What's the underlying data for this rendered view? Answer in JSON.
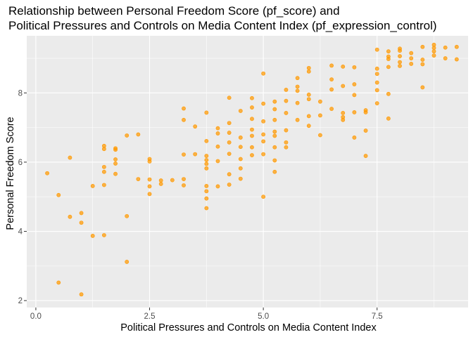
{
  "chart_data": {
    "type": "scatter",
    "title": [
      "Relationship between Personal Freedom Score (pf_score) and",
      "Political Pressures and Controls on Media Content Index (pf_expression_control)"
    ],
    "xlabel": "Political Pressures and Controls on Media Content Index",
    "ylabel": "Personal Freedom Score",
    "xlim": [
      -0.2,
      9.5
    ],
    "ylim": [
      1.8,
      9.65
    ],
    "xticks": [
      0,
      2.5,
      5,
      7.5
    ],
    "xtick_labels": [
      "0.0",
      "2.5",
      "5.0",
      "7.5"
    ],
    "yticks": [
      2,
      4,
      6,
      8
    ],
    "ytick_labels": [
      "2",
      "4",
      "6",
      "8"
    ],
    "point_color": "#FF9900",
    "panel_bg": "#EBEBEB",
    "grid_color": "#FFFFFF",
    "points": [
      [
        0.25,
        5.68
      ],
      [
        0.5,
        5.05
      ],
      [
        0.5,
        2.52
      ],
      [
        0.75,
        6.13
      ],
      [
        0.75,
        4.42
      ],
      [
        1.0,
        4.53
      ],
      [
        1.0,
        4.25
      ],
      [
        1.0,
        2.18
      ],
      [
        1.25,
        5.31
      ],
      [
        1.25,
        3.87
      ],
      [
        1.5,
        6.47
      ],
      [
        1.5,
        6.38
      ],
      [
        1.5,
        5.86
      ],
      [
        1.5,
        5.72
      ],
      [
        1.5,
        5.34
      ],
      [
        1.5,
        3.89
      ],
      [
        1.75,
        6.4
      ],
      [
        1.75,
        6.36
      ],
      [
        1.75,
        6.08
      ],
      [
        1.75,
        5.96
      ],
      [
        1.75,
        5.66
      ],
      [
        2.0,
        6.77
      ],
      [
        2.0,
        4.44
      ],
      [
        2.0,
        3.12
      ],
      [
        2.25,
        6.8
      ],
      [
        2.25,
        5.51
      ],
      [
        2.5,
        6.09
      ],
      [
        2.5,
        6.02
      ],
      [
        2.5,
        5.5
      ],
      [
        2.5,
        5.3
      ],
      [
        2.5,
        5.08
      ],
      [
        2.75,
        5.47
      ],
      [
        2.75,
        5.37
      ],
      [
        3.0,
        5.48
      ],
      [
        3.25,
        7.55
      ],
      [
        3.25,
        7.22
      ],
      [
        3.25,
        6.22
      ],
      [
        3.25,
        5.51
      ],
      [
        3.25,
        5.33
      ],
      [
        3.5,
        7.03
      ],
      [
        3.5,
        6.23
      ],
      [
        3.75,
        7.43
      ],
      [
        3.75,
        6.61
      ],
      [
        3.75,
        6.18
      ],
      [
        3.75,
        6.06
      ],
      [
        3.75,
        5.95
      ],
      [
        3.75,
        5.82
      ],
      [
        3.75,
        5.31
      ],
      [
        3.75,
        5.16
      ],
      [
        3.75,
        4.95
      ],
      [
        3.75,
        4.67
      ],
      [
        4.0,
        6.98
      ],
      [
        4.0,
        6.83
      ],
      [
        4.0,
        6.45
      ],
      [
        4.0,
        6.03
      ],
      [
        4.0,
        5.3
      ],
      [
        4.25,
        7.86
      ],
      [
        4.25,
        7.13
      ],
      [
        4.25,
        6.85
      ],
      [
        4.25,
        6.57
      ],
      [
        4.25,
        6.24
      ],
      [
        4.25,
        5.65
      ],
      [
        4.25,
        5.35
      ],
      [
        4.5,
        7.48
      ],
      [
        4.5,
        6.71
      ],
      [
        4.5,
        6.44
      ],
      [
        4.5,
        6.09
      ],
      [
        4.5,
        5.82
      ],
      [
        4.5,
        5.52
      ],
      [
        4.75,
        7.85
      ],
      [
        4.75,
        7.58
      ],
      [
        4.75,
        7.25
      ],
      [
        4.75,
        6.94
      ],
      [
        4.75,
        6.76
      ],
      [
        4.75,
        6.43
      ],
      [
        4.75,
        6.2
      ],
      [
        5.0,
        8.56
      ],
      [
        5.0,
        7.69
      ],
      [
        5.0,
        7.18
      ],
      [
        5.0,
        6.8
      ],
      [
        5.0,
        6.6
      ],
      [
        5.0,
        6.23
      ],
      [
        5.0,
        5.0
      ],
      [
        5.25,
        7.75
      ],
      [
        5.25,
        7.53
      ],
      [
        5.25,
        7.22
      ],
      [
        5.25,
        6.88
      ],
      [
        5.25,
        6.76
      ],
      [
        5.25,
        6.43
      ],
      [
        5.25,
        6.05
      ],
      [
        5.25,
        5.72
      ],
      [
        5.5,
        8.09
      ],
      [
        5.5,
        7.77
      ],
      [
        5.5,
        7.42
      ],
      [
        5.5,
        6.92
      ],
      [
        5.5,
        6.57
      ],
      [
        5.5,
        6.43
      ],
      [
        5.75,
        8.43
      ],
      [
        5.75,
        8.18
      ],
      [
        5.75,
        8.06
      ],
      [
        5.75,
        7.71
      ],
      [
        5.75,
        7.22
      ],
      [
        6.0,
        8.72
      ],
      [
        6.0,
        8.62
      ],
      [
        6.0,
        7.95
      ],
      [
        6.0,
        7.82
      ],
      [
        6.0,
        7.33
      ],
      [
        6.0,
        7.05
      ],
      [
        6.25,
        7.75
      ],
      [
        6.25,
        7.35
      ],
      [
        6.25,
        6.78
      ],
      [
        6.5,
        8.79
      ],
      [
        6.5,
        8.39
      ],
      [
        6.5,
        8.1
      ],
      [
        6.5,
        7.54
      ],
      [
        6.75,
        8.76
      ],
      [
        6.75,
        8.2
      ],
      [
        6.75,
        7.42
      ],
      [
        6.75,
        7.3
      ],
      [
        6.75,
        7.22
      ],
      [
        7.0,
        8.74
      ],
      [
        7.0,
        8.25
      ],
      [
        7.0,
        7.94
      ],
      [
        7.0,
        7.44
      ],
      [
        7.0,
        6.71
      ],
      [
        7.25,
        7.5
      ],
      [
        7.25,
        7.44
      ],
      [
        7.25,
        6.91
      ],
      [
        7.25,
        6.18
      ],
      [
        7.5,
        9.25
      ],
      [
        7.5,
        8.7
      ],
      [
        7.5,
        8.55
      ],
      [
        7.5,
        8.3
      ],
      [
        7.5,
        8.08
      ],
      [
        7.5,
        7.7
      ],
      [
        7.75,
        9.2
      ],
      [
        7.75,
        9.05
      ],
      [
        7.75,
        8.98
      ],
      [
        7.75,
        8.75
      ],
      [
        7.75,
        7.97
      ],
      [
        7.75,
        7.26
      ],
      [
        8.0,
        9.28
      ],
      [
        8.0,
        9.22
      ],
      [
        8.0,
        9.06
      ],
      [
        8.0,
        8.89
      ],
      [
        8.0,
        8.78
      ],
      [
        8.25,
        9.15
      ],
      [
        8.25,
        9.0
      ],
      [
        8.25,
        8.84
      ],
      [
        8.5,
        9.33
      ],
      [
        8.5,
        8.96
      ],
      [
        8.5,
        8.83
      ],
      [
        8.5,
        8.16
      ],
      [
        8.75,
        9.39
      ],
      [
        8.75,
        9.3
      ],
      [
        8.75,
        9.2
      ],
      [
        8.75,
        9.08
      ],
      [
        9.0,
        9.31
      ],
      [
        9.0,
        9.0
      ],
      [
        9.25,
        9.33
      ],
      [
        9.25,
        8.97
      ]
    ]
  }
}
